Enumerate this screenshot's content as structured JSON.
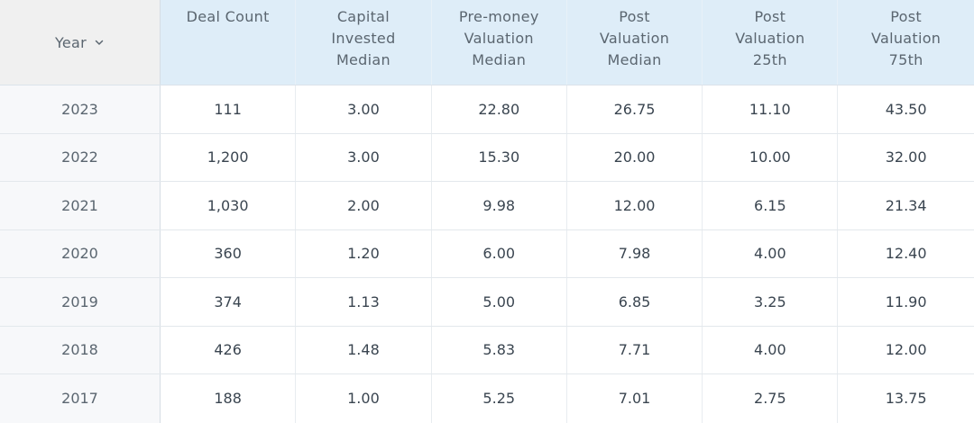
{
  "table": {
    "year_header": "Year",
    "columns": [
      "Deal Count",
      "Capital\nInvested\nMedian",
      "Pre-money\nValuation\nMedian",
      "Post\nValuation\nMedian",
      "Post\nValuation\n25th",
      "Post\nValuation\n75th"
    ],
    "rows": [
      {
        "year": "2023",
        "values": [
          "111",
          "3.00",
          "22.80",
          "26.75",
          "11.10",
          "43.50"
        ]
      },
      {
        "year": "2022",
        "values": [
          "1,200",
          "3.00",
          "15.30",
          "20.00",
          "10.00",
          "32.00"
        ]
      },
      {
        "year": "2021",
        "values": [
          "1,030",
          "2.00",
          "9.98",
          "12.00",
          "6.15",
          "21.34"
        ]
      },
      {
        "year": "2020",
        "values": [
          "360",
          "1.20",
          "6.00",
          "7.98",
          "4.00",
          "12.40"
        ]
      },
      {
        "year": "2019",
        "values": [
          "374",
          "1.13",
          "5.00",
          "6.85",
          "3.25",
          "11.90"
        ]
      },
      {
        "year": "2018",
        "values": [
          "426",
          "1.48",
          "5.83",
          "7.71",
          "4.00",
          "12.00"
        ]
      },
      {
        "year": "2017",
        "values": [
          "188",
          "1.00",
          "5.25",
          "7.01",
          "2.75",
          "13.75"
        ]
      }
    ],
    "sort_icon": "chevron-down-icon",
    "colors": {
      "header_bg": "#deedf8",
      "year_header_bg": "#f0f0f0",
      "year_col_bg": "#f7f8fa",
      "text": "#3a4550"
    }
  }
}
